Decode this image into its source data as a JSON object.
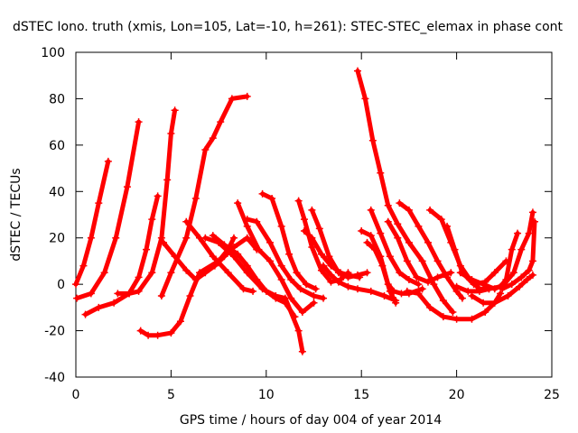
{
  "chart_data": {
    "type": "scatter",
    "title": "dSTEC Iono. truth (xmis, Lon=105, Lat=-10, h=261): STEC-STEC_elemax in phase cont",
    "xlabel": "GPS time / hours of day 004 of year 2014",
    "ylabel": "dSTEC  / TECUs",
    "xlim": [
      0,
      25
    ],
    "ylim": [
      -40,
      100
    ],
    "xticks": [
      0,
      5,
      10,
      15,
      20,
      25
    ],
    "yticks": [
      -40,
      -20,
      0,
      20,
      40,
      60,
      80,
      100
    ],
    "grid": false,
    "marker": "+",
    "color": "#ff0000",
    "series": [
      {
        "points": [
          [
            0.0,
            0
          ],
          [
            0.4,
            8
          ],
          [
            0.8,
            20
          ],
          [
            1.2,
            35
          ],
          [
            1.7,
            53
          ]
        ]
      },
      {
        "points": [
          [
            0.05,
            -6
          ],
          [
            0.8,
            -4
          ],
          [
            1.5,
            5
          ],
          [
            2.1,
            20
          ],
          [
            2.7,
            42
          ],
          [
            3.3,
            70
          ]
        ]
      },
      {
        "points": [
          [
            0.5,
            -13
          ],
          [
            1.2,
            -10
          ],
          [
            2.0,
            -8
          ],
          [
            2.8,
            -4
          ],
          [
            3.3,
            3
          ],
          [
            3.7,
            15
          ],
          [
            4.0,
            28
          ],
          [
            4.3,
            38
          ]
        ]
      },
      {
        "points": [
          [
            2.2,
            -4
          ],
          [
            2.8,
            -4
          ],
          [
            3.3,
            -3
          ],
          [
            4.0,
            5
          ],
          [
            4.5,
            20
          ],
          [
            4.8,
            45
          ],
          [
            5.0,
            65
          ],
          [
            5.2,
            75
          ]
        ]
      },
      {
        "points": [
          [
            3.4,
            -20
          ],
          [
            3.8,
            -22
          ],
          [
            4.3,
            -22
          ],
          [
            5.0,
            -21
          ],
          [
            5.5,
            -16
          ],
          [
            6.0,
            -5
          ],
          [
            6.5,
            5
          ],
          [
            7.5,
            10
          ],
          [
            8.0,
            15
          ],
          [
            8.3,
            20
          ]
        ]
      },
      {
        "points": [
          [
            4.5,
            -5
          ],
          [
            5.0,
            5
          ],
          [
            5.8,
            20
          ],
          [
            6.3,
            37
          ],
          [
            6.8,
            58
          ],
          [
            7.2,
            63
          ],
          [
            7.6,
            70
          ],
          [
            8.2,
            80
          ],
          [
            9.0,
            81
          ]
        ]
      },
      {
        "points": [
          [
            4.6,
            18
          ],
          [
            5.2,
            12
          ],
          [
            5.8,
            6
          ],
          [
            6.3,
            2
          ],
          [
            6.8,
            5
          ],
          [
            7.3,
            8
          ],
          [
            7.8,
            12
          ],
          [
            8.3,
            16
          ],
          [
            9.0,
            20
          ],
          [
            9.5,
            15
          ]
        ]
      },
      {
        "points": [
          [
            5.8,
            27
          ],
          [
            6.5,
            20
          ],
          [
            7.2,
            12
          ],
          [
            8.0,
            5
          ],
          [
            8.8,
            -2
          ],
          [
            9.3,
            -3
          ]
        ]
      },
      {
        "points": [
          [
            6.8,
            20
          ],
          [
            7.5,
            18
          ],
          [
            8.3,
            12
          ],
          [
            9.0,
            5
          ],
          [
            9.8,
            -2
          ],
          [
            10.5,
            -5
          ],
          [
            11.0,
            -6
          ],
          [
            11.7,
            -20
          ],
          [
            11.9,
            -29
          ]
        ]
      },
      {
        "points": [
          [
            7.2,
            21
          ],
          [
            7.8,
            17
          ],
          [
            8.5,
            13
          ],
          [
            9.0,
            8
          ],
          [
            9.5,
            2
          ],
          [
            10.0,
            -3
          ],
          [
            10.5,
            -6
          ],
          [
            11.0,
            -8
          ],
          [
            11.5,
            -14
          ]
        ]
      },
      {
        "points": [
          [
            8.5,
            35
          ],
          [
            9.0,
            25
          ],
          [
            9.6,
            15
          ],
          [
            10.2,
            10
          ],
          [
            10.8,
            2
          ],
          [
            11.3,
            -6
          ],
          [
            11.9,
            -12
          ],
          [
            12.5,
            -8
          ]
        ]
      },
      {
        "points": [
          [
            9.0,
            28
          ],
          [
            9.5,
            27
          ],
          [
            10.2,
            18
          ],
          [
            10.8,
            8
          ],
          [
            11.3,
            2
          ],
          [
            11.8,
            -2
          ],
          [
            12.5,
            -5
          ],
          [
            13.0,
            -6
          ]
        ]
      },
      {
        "points": [
          [
            9.8,
            39
          ],
          [
            10.3,
            37
          ],
          [
            10.8,
            25
          ],
          [
            11.2,
            13
          ],
          [
            11.6,
            5
          ],
          [
            12.1,
            0
          ],
          [
            12.6,
            -2
          ]
        ]
      },
      {
        "points": [
          [
            11.7,
            36
          ],
          [
            12.0,
            28
          ],
          [
            12.4,
            16
          ],
          [
            12.9,
            6
          ],
          [
            13.4,
            1
          ],
          [
            13.9,
            2
          ],
          [
            14.3,
            5
          ]
        ]
      },
      {
        "points": [
          [
            12.0,
            23
          ],
          [
            12.4,
            20
          ],
          [
            12.9,
            13
          ],
          [
            13.4,
            8
          ],
          [
            13.9,
            5
          ],
          [
            14.3,
            4
          ],
          [
            14.9,
            3
          ]
        ]
      },
      {
        "points": [
          [
            12.4,
            32
          ],
          [
            12.8,
            24
          ],
          [
            13.3,
            12
          ],
          [
            13.8,
            5
          ],
          [
            14.3,
            3
          ],
          [
            14.8,
            4
          ],
          [
            15.3,
            5
          ]
        ]
      },
      {
        "points": [
          [
            13.0,
            8
          ],
          [
            13.4,
            4
          ],
          [
            13.8,
            1
          ],
          [
            14.3,
            -1
          ],
          [
            14.8,
            -2
          ],
          [
            15.5,
            -3
          ],
          [
            16.2,
            -5
          ],
          [
            16.8,
            -7
          ]
        ]
      },
      {
        "points": [
          [
            14.8,
            92
          ],
          [
            15.2,
            80
          ],
          [
            15.6,
            62
          ],
          [
            16.0,
            48
          ],
          [
            16.4,
            34
          ],
          [
            16.9,
            26
          ],
          [
            17.5,
            18
          ],
          [
            18.2,
            10
          ],
          [
            18.8,
            0
          ],
          [
            19.3,
            -7
          ],
          [
            19.8,
            -12
          ]
        ]
      },
      {
        "points": [
          [
            15.0,
            23
          ],
          [
            15.5,
            21
          ],
          [
            16.0,
            12
          ],
          [
            16.4,
            0
          ],
          [
            16.7,
            -3
          ],
          [
            17.1,
            -4
          ],
          [
            17.5,
            -4
          ],
          [
            18.2,
            -2
          ]
        ]
      },
      {
        "points": [
          [
            15.3,
            18
          ],
          [
            15.7,
            15
          ],
          [
            16.1,
            8
          ],
          [
            16.5,
            -3
          ],
          [
            16.8,
            -8
          ]
        ]
      },
      {
        "points": [
          [
            15.5,
            32
          ],
          [
            16.0,
            22
          ],
          [
            16.5,
            12
          ],
          [
            17.0,
            5
          ],
          [
            17.5,
            2
          ],
          [
            18.0,
            0
          ]
        ]
      },
      {
        "points": [
          [
            16.4,
            27
          ],
          [
            16.9,
            20
          ],
          [
            17.4,
            10
          ],
          [
            17.9,
            3
          ],
          [
            18.5,
            1
          ],
          [
            19.0,
            3
          ],
          [
            19.7,
            5
          ]
        ]
      },
      {
        "points": [
          [
            17.0,
            35
          ],
          [
            17.5,
            32
          ],
          [
            18.0,
            25
          ],
          [
            18.5,
            18
          ],
          [
            19.0,
            10
          ],
          [
            19.5,
            3
          ],
          [
            20.0,
            -3
          ],
          [
            20.3,
            -6
          ]
        ]
      },
      {
        "points": [
          [
            17.4,
            -3
          ],
          [
            18.0,
            -4
          ],
          [
            18.6,
            -10
          ],
          [
            19.3,
            -14
          ],
          [
            20.0,
            -15
          ],
          [
            20.8,
            -15
          ],
          [
            21.5,
            -12
          ],
          [
            22.0,
            -8
          ],
          [
            22.3,
            -4
          ]
        ]
      },
      {
        "points": [
          [
            18.6,
            32
          ],
          [
            19.2,
            28
          ],
          [
            19.7,
            18
          ],
          [
            20.2,
            8
          ],
          [
            20.7,
            2
          ],
          [
            21.2,
            -2
          ],
          [
            21.7,
            -2
          ]
        ]
      },
      {
        "points": [
          [
            19.5,
            25
          ],
          [
            19.9,
            15
          ],
          [
            20.3,
            5
          ],
          [
            20.9,
            0
          ],
          [
            21.5,
            1
          ],
          [
            22.0,
            5
          ],
          [
            22.6,
            10
          ]
        ]
      },
      {
        "points": [
          [
            20.0,
            -1
          ],
          [
            20.6,
            -3
          ],
          [
            21.2,
            -3
          ],
          [
            21.7,
            -2
          ],
          [
            22.3,
            -1
          ],
          [
            22.6,
            2
          ],
          [
            22.9,
            15
          ],
          [
            23.2,
            22
          ]
        ]
      },
      {
        "points": [
          [
            20.2,
            5
          ],
          [
            20.8,
            2
          ],
          [
            21.4,
            0
          ],
          [
            22.0,
            -2
          ],
          [
            22.5,
            0
          ],
          [
            23.0,
            5
          ],
          [
            23.4,
            15
          ],
          [
            23.8,
            22
          ],
          [
            24.0,
            31
          ]
        ]
      },
      {
        "points": [
          [
            20.8,
            -5
          ],
          [
            21.4,
            -8
          ],
          [
            22.0,
            -8
          ],
          [
            22.7,
            -5
          ],
          [
            23.3,
            -1
          ],
          [
            23.7,
            2
          ],
          [
            24.0,
            4
          ]
        ]
      },
      {
        "points": [
          [
            22.4,
            -2
          ],
          [
            22.9,
            0
          ],
          [
            23.4,
            3
          ],
          [
            23.8,
            6
          ],
          [
            24.0,
            10
          ],
          [
            24.1,
            27
          ]
        ]
      }
    ]
  }
}
